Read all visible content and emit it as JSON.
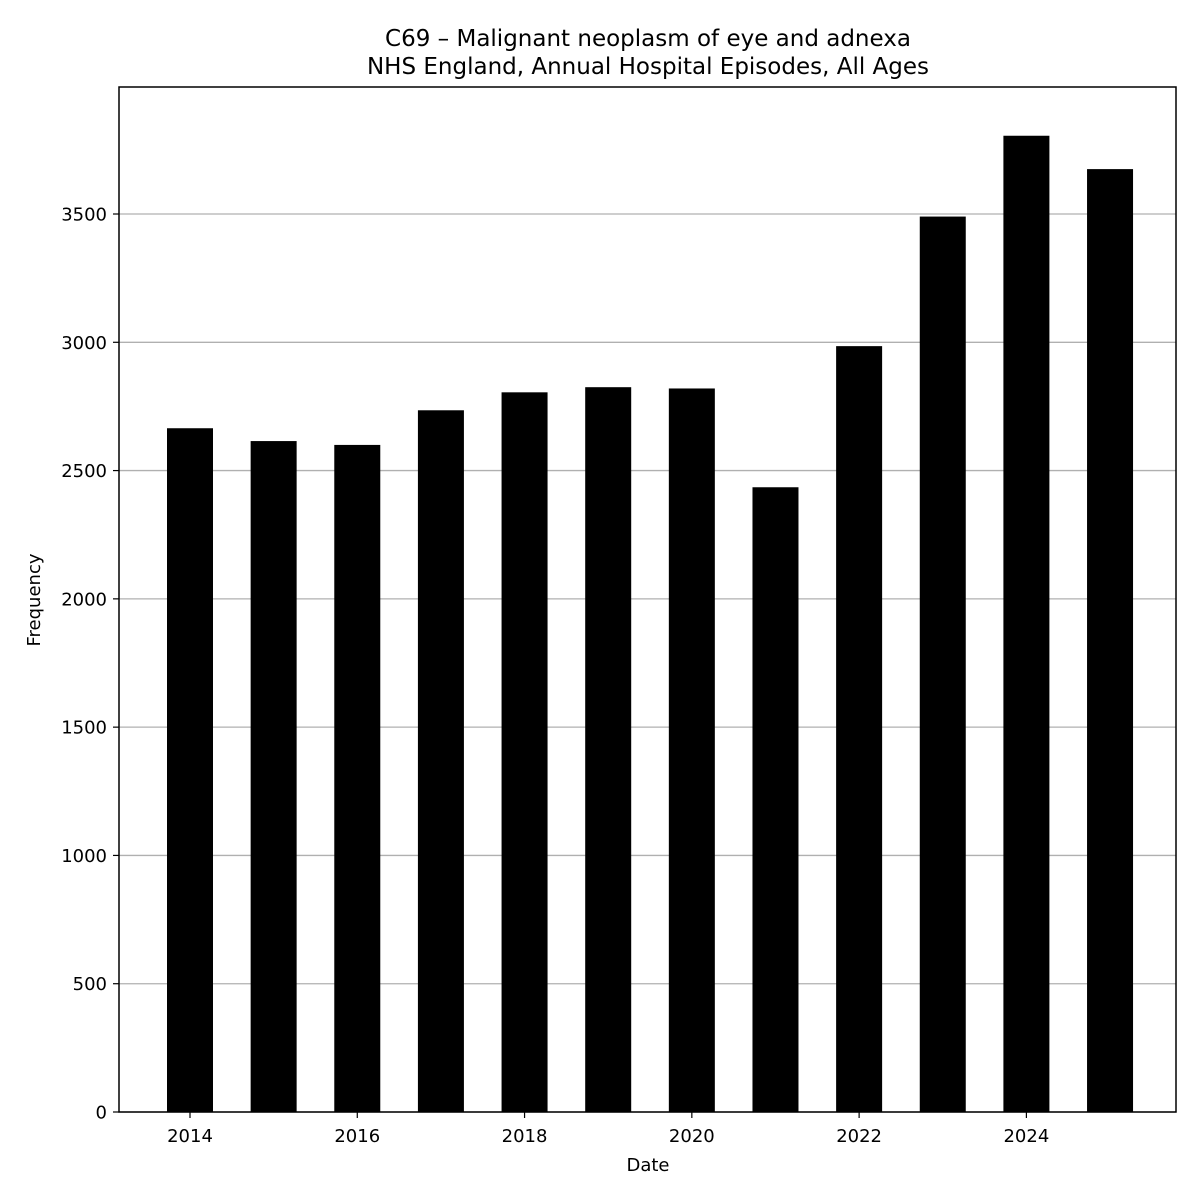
{
  "chart_data": {
    "type": "bar",
    "title": "C69 – Malignant neoplasm of eye and adnexa",
    "subtitle": "NHS England, Annual Hospital Episodes, All Ages",
    "xlabel": "Date",
    "ylabel": "Frequency",
    "categories": [
      "2014",
      "2015",
      "2016",
      "2017",
      "2018",
      "2019",
      "2020",
      "2021",
      "2022",
      "2023",
      "2024",
      "2025"
    ],
    "values": [
      2665,
      2615,
      2600,
      2735,
      2805,
      2825,
      2820,
      2435,
      2985,
      3490,
      3805,
      3675
    ],
    "x_tick_labels": [
      "2014",
      "2016",
      "2018",
      "2020",
      "2022",
      "2024"
    ],
    "y_tick_labels": [
      "0",
      "500",
      "1000",
      "1500",
      "2000",
      "2500",
      "3000",
      "3500"
    ],
    "ylim": [
      0,
      3995
    ],
    "grid": "horizontal",
    "legend": "none",
    "bar_color": "#000000",
    "grid_color": "#b0b0b0"
  }
}
